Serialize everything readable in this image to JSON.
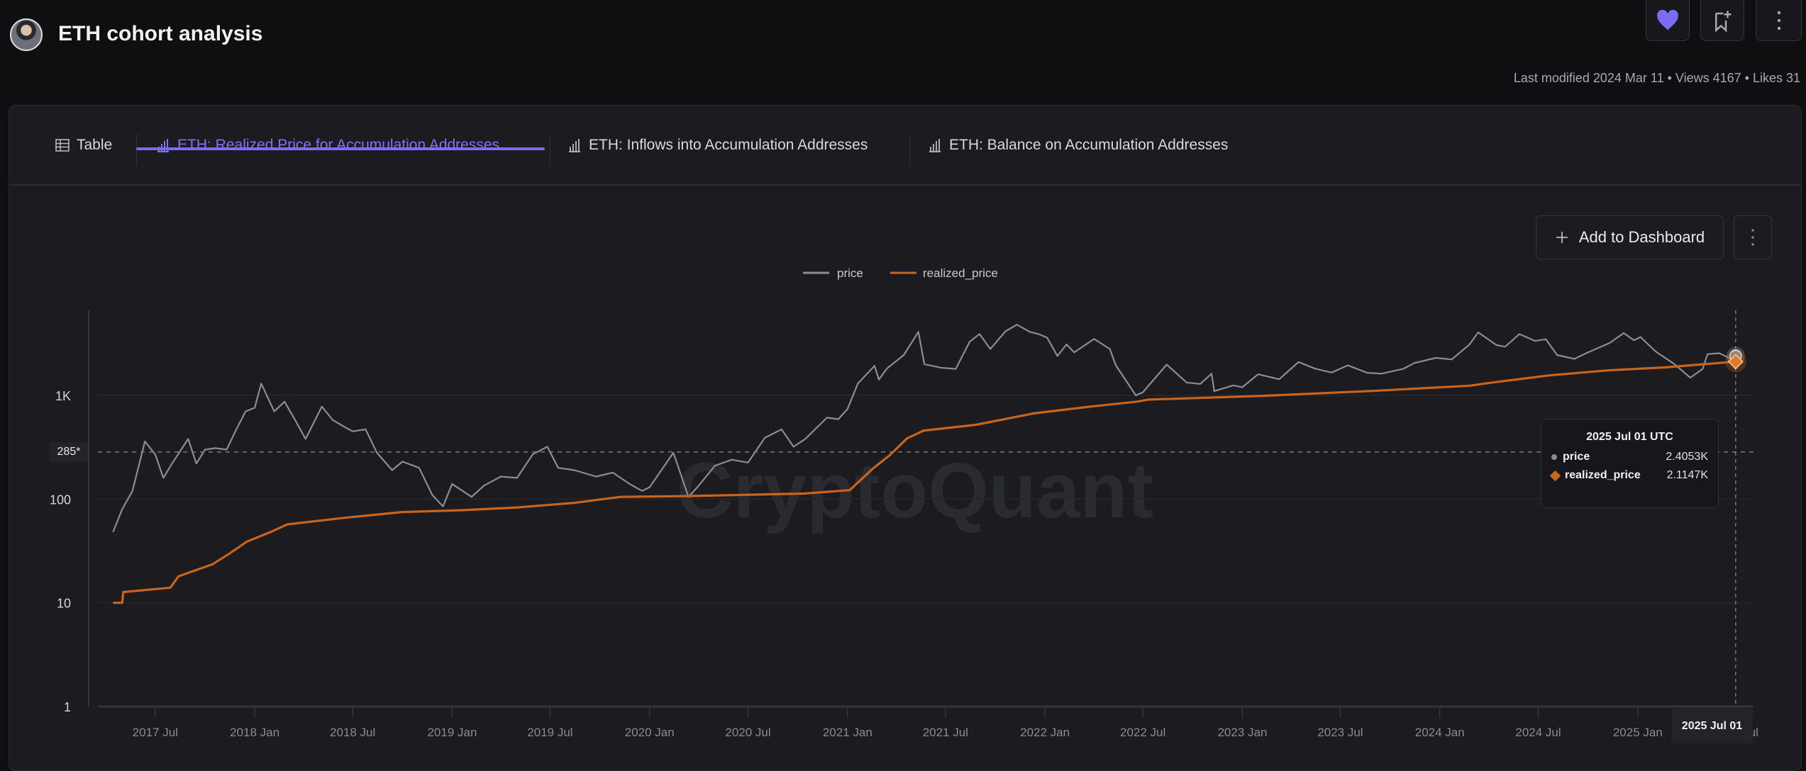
{
  "header": {
    "title": "ETH cohort analysis",
    "meta": "Last modified 2024 Mar 11 • Views 4167 • Likes 31",
    "buttons": [
      {
        "icon": "heart-icon"
      },
      {
        "icon": "bookmark-add-icon"
      },
      {
        "icon": "more-vertical-icon"
      }
    ]
  },
  "tabs": [
    {
      "label": "Table",
      "icon": "table-icon",
      "active": false
    },
    {
      "label": "ETH: Realized Price for Accumulation Addresses",
      "icon": "bar-chart-icon",
      "active": true
    },
    {
      "label": "ETH: Inflows into Accumulation Addresses",
      "icon": "bar-chart-icon",
      "active": false
    },
    {
      "label": "ETH: Balance on Accumulation Addresses",
      "icon": "bar-chart-icon",
      "active": false
    }
  ],
  "toolbar": {
    "add_label": "Add to Dashboard"
  },
  "colors": {
    "accent": "#7b6cf6",
    "price": "#8c8c96",
    "realized_price": "#c8651b"
  },
  "watermark": "CryptoQuant",
  "tooltip": {
    "title": "2025 Jul 01 UTC",
    "rows": [
      {
        "name": "price",
        "value": "2.4053K"
      },
      {
        "name": "realized_price",
        "value": "2.1147K"
      }
    ]
  },
  "crosshair": {
    "x_label": "2025 Jul 01",
    "y_label": "285*",
    "y_value": 285
  },
  "chart_data": {
    "type": "line",
    "y_scale": "log",
    "ylim": [
      1,
      6600
    ],
    "xlim": [
      "2017-03-17",
      "2025-08-03"
    ],
    "grid": true,
    "legend_position": "top-center",
    "y_ticks": [
      {
        "v": 1,
        "label": "1"
      },
      {
        "v": 10,
        "label": "10"
      },
      {
        "v": 100,
        "label": "100"
      },
      {
        "v": 1000,
        "label": "1K"
      }
    ],
    "x_ticks": [
      {
        "d": "2017-07-01",
        "label": "2017 Jul"
      },
      {
        "d": "2018-01-01",
        "label": "2018 Jan"
      },
      {
        "d": "2018-07-01",
        "label": "2018 Jul"
      },
      {
        "d": "2019-01-01",
        "label": "2019 Jan"
      },
      {
        "d": "2019-07-01",
        "label": "2019 Jul"
      },
      {
        "d": "2020-01-01",
        "label": "2020 Jan"
      },
      {
        "d": "2020-07-01",
        "label": "2020 Jul"
      },
      {
        "d": "2021-01-01",
        "label": "2021 Jan"
      },
      {
        "d": "2021-07-01",
        "label": "2021 Jul"
      },
      {
        "d": "2022-01-01",
        "label": "2022 Jan"
      },
      {
        "d": "2022-07-01",
        "label": "2022 Jul"
      },
      {
        "d": "2023-01-01",
        "label": "2023 Jan"
      },
      {
        "d": "2023-07-01",
        "label": "2023 Jul"
      },
      {
        "d": "2024-01-01",
        "label": "2024 Jan"
      },
      {
        "d": "2024-07-01",
        "label": "2024 Jul"
      },
      {
        "d": "2025-01-01",
        "label": "2025 Jan"
      },
      {
        "d": "2025-07-01",
        "label": "2025 Jul"
      }
    ],
    "series": [
      {
        "name": "price",
        "points": [
          [
            "2017-04-14",
            48
          ],
          [
            "2017-05-01",
            80
          ],
          [
            "2017-05-20",
            120
          ],
          [
            "2017-06-12",
            360
          ],
          [
            "2017-07-01",
            270
          ],
          [
            "2017-07-16",
            160
          ],
          [
            "2017-08-01",
            220
          ],
          [
            "2017-08-31",
            380
          ],
          [
            "2017-09-15",
            220
          ],
          [
            "2017-10-01",
            300
          ],
          [
            "2017-10-20",
            310
          ],
          [
            "2017-11-10",
            300
          ],
          [
            "2017-11-28",
            470
          ],
          [
            "2017-12-15",
            700
          ],
          [
            "2018-01-01",
            760
          ],
          [
            "2018-01-13",
            1300
          ],
          [
            "2018-02-06",
            700
          ],
          [
            "2018-02-25",
            870
          ],
          [
            "2018-03-15",
            600
          ],
          [
            "2018-04-05",
            380
          ],
          [
            "2018-05-05",
            780
          ],
          [
            "2018-05-25",
            580
          ],
          [
            "2018-06-15",
            500
          ],
          [
            "2018-07-01",
            450
          ],
          [
            "2018-07-25",
            470
          ],
          [
            "2018-08-15",
            280
          ],
          [
            "2018-09-12",
            190
          ],
          [
            "2018-10-01",
            230
          ],
          [
            "2018-11-01",
            200
          ],
          [
            "2018-11-25",
            110
          ],
          [
            "2018-12-15",
            85
          ],
          [
            "2019-01-01",
            140
          ],
          [
            "2019-02-06",
            105
          ],
          [
            "2019-03-01",
            135
          ],
          [
            "2019-04-01",
            165
          ],
          [
            "2019-05-01",
            160
          ],
          [
            "2019-05-30",
            270
          ],
          [
            "2019-06-26",
            320
          ],
          [
            "2019-07-16",
            200
          ],
          [
            "2019-08-15",
            190
          ],
          [
            "2019-09-24",
            165
          ],
          [
            "2019-10-25",
            180
          ],
          [
            "2019-11-25",
            140
          ],
          [
            "2019-12-18",
            120
          ],
          [
            "2020-01-01",
            130
          ],
          [
            "2020-02-14",
            280
          ],
          [
            "2020-03-13",
            105
          ],
          [
            "2020-04-01",
            135
          ],
          [
            "2020-05-01",
            210
          ],
          [
            "2020-06-01",
            240
          ],
          [
            "2020-07-01",
            225
          ],
          [
            "2020-08-01",
            390
          ],
          [
            "2020-09-01",
            470
          ],
          [
            "2020-09-23",
            320
          ],
          [
            "2020-10-15",
            380
          ],
          [
            "2020-11-24",
            610
          ],
          [
            "2020-12-15",
            590
          ],
          [
            "2021-01-01",
            740
          ],
          [
            "2021-01-20",
            1300
          ],
          [
            "2021-02-20",
            1930
          ],
          [
            "2021-02-28",
            1420
          ],
          [
            "2021-03-15",
            1820
          ],
          [
            "2021-04-15",
            2450
          ],
          [
            "2021-05-12",
            4100
          ],
          [
            "2021-05-23",
            2000
          ],
          [
            "2021-06-22",
            1850
          ],
          [
            "2021-07-20",
            1800
          ],
          [
            "2021-08-15",
            3300
          ],
          [
            "2021-09-02",
            3900
          ],
          [
            "2021-09-22",
            2800
          ],
          [
            "2021-10-20",
            4150
          ],
          [
            "2021-11-10",
            4800
          ],
          [
            "2021-12-04",
            4100
          ],
          [
            "2021-12-20",
            3900
          ],
          [
            "2022-01-05",
            3600
          ],
          [
            "2022-01-24",
            2400
          ],
          [
            "2022-02-10",
            3100
          ],
          [
            "2022-02-24",
            2600
          ],
          [
            "2022-04-02",
            3500
          ],
          [
            "2022-05-01",
            2800
          ],
          [
            "2022-05-12",
            1950
          ],
          [
            "2022-06-18",
            1000
          ],
          [
            "2022-07-01",
            1070
          ],
          [
            "2022-08-14",
            1980
          ],
          [
            "2022-09-20",
            1330
          ],
          [
            "2022-10-15",
            1290
          ],
          [
            "2022-11-05",
            1620
          ],
          [
            "2022-11-10",
            1100
          ],
          [
            "2022-12-15",
            1250
          ],
          [
            "2023-01-01",
            1200
          ],
          [
            "2023-01-30",
            1600
          ],
          [
            "2023-03-10",
            1430
          ],
          [
            "2023-04-15",
            2100
          ],
          [
            "2023-05-15",
            1810
          ],
          [
            "2023-06-15",
            1660
          ],
          [
            "2023-07-15",
            1950
          ],
          [
            "2023-08-20",
            1650
          ],
          [
            "2023-09-15",
            1620
          ],
          [
            "2023-10-25",
            1800
          ],
          [
            "2023-11-15",
            2050
          ],
          [
            "2023-12-25",
            2300
          ],
          [
            "2024-01-23",
            2220
          ],
          [
            "2024-02-25",
            3100
          ],
          [
            "2024-03-12",
            4050
          ],
          [
            "2024-04-15",
            3050
          ],
          [
            "2024-05-01",
            2950
          ],
          [
            "2024-05-27",
            3900
          ],
          [
            "2024-06-25",
            3350
          ],
          [
            "2024-07-15",
            3480
          ],
          [
            "2024-08-05",
            2450
          ],
          [
            "2024-09-06",
            2250
          ],
          [
            "2024-10-01",
            2600
          ],
          [
            "2024-11-10",
            3200
          ],
          [
            "2024-12-06",
            3990
          ],
          [
            "2024-12-25",
            3400
          ],
          [
            "2025-01-06",
            3650
          ],
          [
            "2025-02-03",
            2650
          ],
          [
            "2025-03-10",
            2000
          ],
          [
            "2025-04-08",
            1480
          ],
          [
            "2025-05-01",
            1800
          ],
          [
            "2025-05-10",
            2500
          ],
          [
            "2025-06-01",
            2550
          ],
          [
            "2025-06-22",
            2250
          ],
          [
            "2025-07-01",
            2405.3
          ]
        ]
      },
      {
        "name": "realized_price",
        "points": [
          [
            "2017-04-14",
            10
          ],
          [
            "2017-05-01",
            10
          ],
          [
            "2017-05-03",
            12.7
          ],
          [
            "2017-07-29",
            14
          ],
          [
            "2017-08-13",
            18
          ],
          [
            "2017-10-15",
            23.5
          ],
          [
            "2017-11-16",
            30
          ],
          [
            "2017-12-18",
            39
          ],
          [
            "2018-01-30",
            48
          ],
          [
            "2018-03-02",
            57
          ],
          [
            "2018-06-16",
            66
          ],
          [
            "2018-09-30",
            75
          ],
          [
            "2019-01-15",
            78
          ],
          [
            "2019-05-01",
            83
          ],
          [
            "2019-08-15",
            92
          ],
          [
            "2019-11-08",
            105
          ],
          [
            "2020-03-14",
            107
          ],
          [
            "2020-10-12",
            113
          ],
          [
            "2021-01-05",
            122
          ],
          [
            "2021-02-16",
            195
          ],
          [
            "2021-03-20",
            265
          ],
          [
            "2021-04-21",
            385
          ],
          [
            "2021-05-22",
            458
          ],
          [
            "2021-08-26",
            520
          ],
          [
            "2021-12-11",
            670
          ],
          [
            "2022-03-27",
            780
          ],
          [
            "2022-06-20",
            870
          ],
          [
            "2022-07-11",
            910
          ],
          [
            "2023-02-07",
            990
          ],
          [
            "2023-09-08",
            1110
          ],
          [
            "2024-02-25",
            1240
          ],
          [
            "2024-04-07",
            1330
          ],
          [
            "2024-07-22",
            1560
          ],
          [
            "2024-11-06",
            1740
          ],
          [
            "2025-02-19",
            1860
          ],
          [
            "2025-07-01",
            2114.7
          ]
        ]
      }
    ]
  }
}
